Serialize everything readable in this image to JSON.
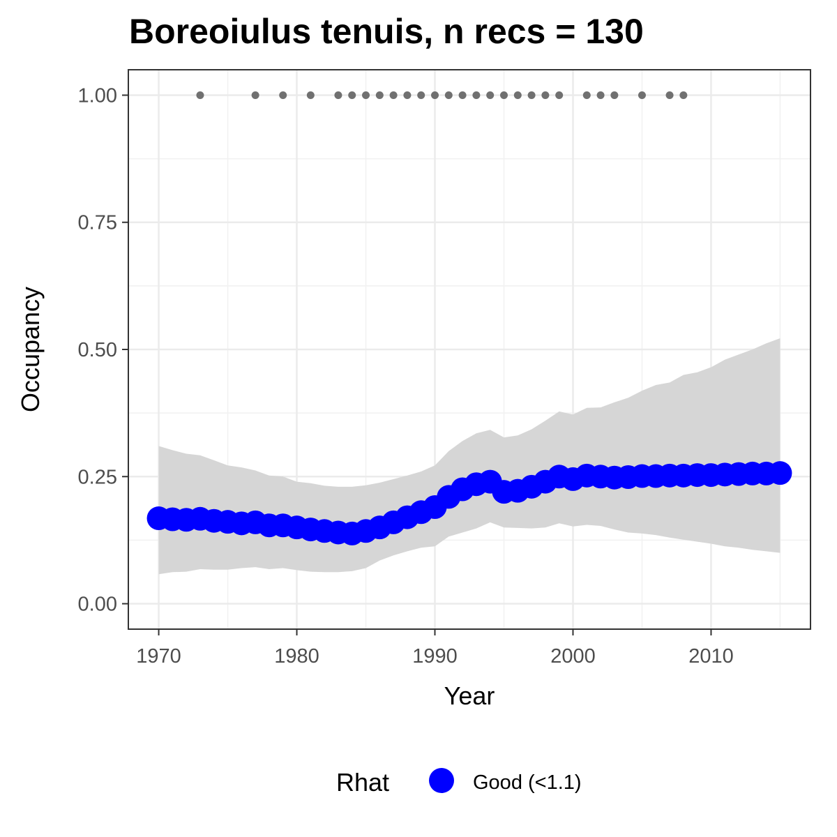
{
  "chart_data": {
    "type": "line",
    "title": "Boreoiulus tenuis, n recs = 130",
    "xlabel": "Year",
    "ylabel": "Occupancy",
    "xlim": [
      1967.8,
      2017.2
    ],
    "ylim": [
      -0.05,
      1.05
    ],
    "x_ticks": [
      1970,
      1980,
      1990,
      2000,
      2010
    ],
    "y_ticks": [
      0.0,
      0.25,
      0.5,
      0.75,
      1.0
    ],
    "y_tick_labels": [
      "0.00",
      "0.25",
      "0.50",
      "0.75",
      "1.00"
    ],
    "grid": true,
    "legend_position": "bottom",
    "legend": {
      "title": "Rhat",
      "entries": [
        {
          "label": "Good (<1.1)",
          "color": "#0000ff"
        }
      ]
    },
    "colors": {
      "estimate": "#0000ff",
      "ribbon": "#d6d6d6",
      "records": "#707070"
    },
    "x": [
      1970,
      1971,
      1972,
      1973,
      1974,
      1975,
      1976,
      1977,
      1978,
      1979,
      1980,
      1981,
      1982,
      1983,
      1984,
      1985,
      1986,
      1987,
      1988,
      1989,
      1990,
      1991,
      1992,
      1993,
      1994,
      1995,
      1996,
      1997,
      1998,
      1999,
      2000,
      2001,
      2002,
      2003,
      2004,
      2005,
      2006,
      2007,
      2008,
      2009,
      2010,
      2011,
      2012,
      2013,
      2014,
      2015
    ],
    "series": [
      {
        "name": "Good (<1.1)",
        "occupancy": [
          0.168,
          0.166,
          0.165,
          0.167,
          0.163,
          0.161,
          0.158,
          0.16,
          0.154,
          0.154,
          0.15,
          0.146,
          0.143,
          0.14,
          0.138,
          0.143,
          0.15,
          0.16,
          0.17,
          0.18,
          0.19,
          0.21,
          0.225,
          0.235,
          0.24,
          0.22,
          0.222,
          0.23,
          0.24,
          0.25,
          0.245,
          0.252,
          0.25,
          0.248,
          0.249,
          0.251,
          0.251,
          0.252,
          0.252,
          0.253,
          0.253,
          0.254,
          0.255,
          0.256,
          0.256,
          0.257
        ],
        "lower": [
          0.058,
          0.062,
          0.063,
          0.068,
          0.067,
          0.067,
          0.07,
          0.072,
          0.068,
          0.07,
          0.066,
          0.063,
          0.062,
          0.062,
          0.064,
          0.07,
          0.085,
          0.095,
          0.103,
          0.11,
          0.113,
          0.132,
          0.14,
          0.148,
          0.16,
          0.15,
          0.149,
          0.148,
          0.15,
          0.158,
          0.152,
          0.155,
          0.153,
          0.146,
          0.14,
          0.138,
          0.135,
          0.13,
          0.126,
          0.122,
          0.118,
          0.113,
          0.11,
          0.106,
          0.103,
          0.1
        ],
        "upper": [
          0.31,
          0.302,
          0.295,
          0.292,
          0.282,
          0.272,
          0.268,
          0.262,
          0.252,
          0.25,
          0.24,
          0.237,
          0.232,
          0.23,
          0.23,
          0.233,
          0.238,
          0.245,
          0.252,
          0.26,
          0.272,
          0.3,
          0.32,
          0.335,
          0.342,
          0.327,
          0.331,
          0.343,
          0.36,
          0.378,
          0.372,
          0.385,
          0.386,
          0.396,
          0.405,
          0.419,
          0.43,
          0.435,
          0.45,
          0.455,
          0.465,
          0.48,
          0.49,
          0.5,
          0.512,
          0.522
        ]
      }
    ],
    "record_years": [
      1973,
      1977,
      1979,
      1981,
      1983,
      1984,
      1985,
      1986,
      1987,
      1988,
      1989,
      1990,
      1991,
      1992,
      1993,
      1994,
      1995,
      1996,
      1997,
      1998,
      1999,
      2001,
      2002,
      2003,
      2005,
      2007,
      2008
    ],
    "record_value": 1.0
  }
}
